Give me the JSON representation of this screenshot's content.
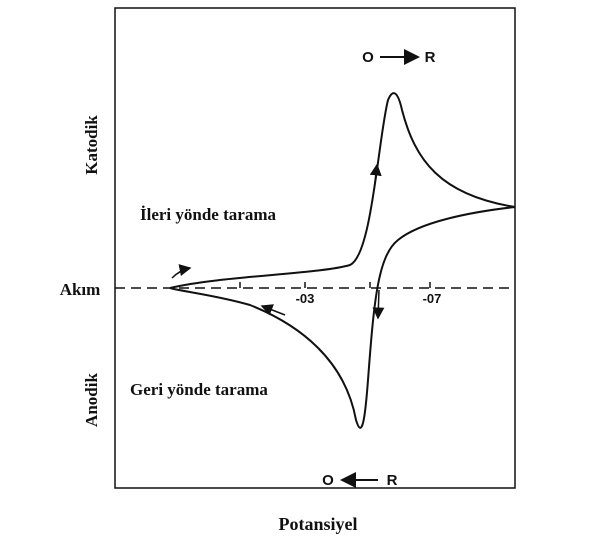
{
  "diagram": {
    "y_axis": {
      "top_label": "Katodik",
      "bottom_label": "Anodik",
      "zero_label": "Akım"
    },
    "x_axis": {
      "label": "Potansiyel",
      "tick_labels": [
        "-03",
        "-07"
      ]
    },
    "forward_scan": {
      "label": "İleri yönde tarama",
      "reaction": {
        "from": "O",
        "to": "R"
      }
    },
    "reverse_scan": {
      "label": "Geri yönde tarama",
      "reaction": {
        "from": "O",
        "to": "R"
      }
    }
  }
}
